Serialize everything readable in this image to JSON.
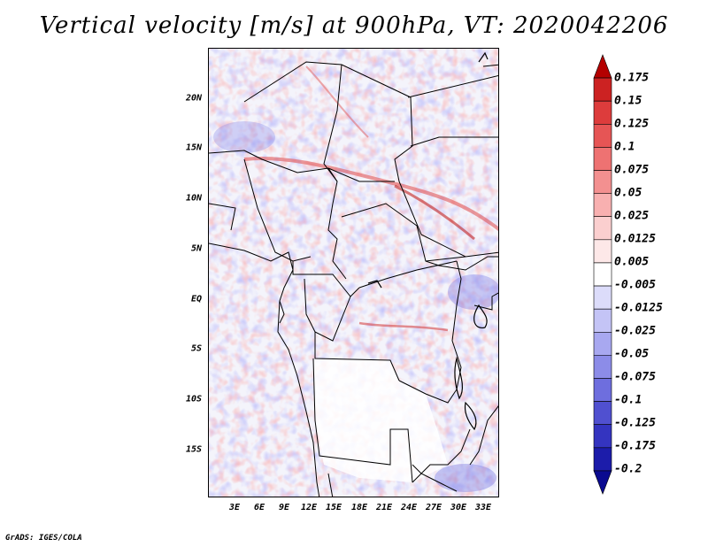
{
  "title": "Vertical velocity [m/s] at 900hPa, VT: 2020042206",
  "credit": "GrADS: IGES/COLA",
  "map": {
    "lat_labels": [
      "20N",
      "15N",
      "10N",
      "5N",
      "EQ",
      "5S",
      "10S",
      "15S"
    ],
    "lat_values": [
      20,
      15,
      10,
      5,
      0,
      -5,
      -10,
      -15
    ],
    "lon_labels": [
      "3E",
      "6E",
      "9E",
      "12E",
      "15E",
      "18E",
      "21E",
      "24E",
      "27E",
      "30E",
      "33E"
    ],
    "lon_values": [
      3,
      6,
      9,
      12,
      15,
      18,
      21,
      24,
      27,
      30,
      33
    ],
    "lat_range": [
      -20,
      24.5
    ],
    "lon_range": [
      0.5,
      35
    ]
  },
  "colorbar": {
    "levels": [
      "0.175",
      "0.15",
      "0.125",
      "0.1",
      "0.075",
      "0.05",
      "0.025",
      "0.0125",
      "0.005",
      "-0.005",
      "-0.0125",
      "-0.025",
      "-0.05",
      "-0.075",
      "-0.1",
      "-0.125",
      "-0.175",
      "-0.2"
    ],
    "colors": [
      "#b40000",
      "#cc2222",
      "#dd3c3c",
      "#e65555",
      "#ee7272",
      "#f39090",
      "#f8b0b0",
      "#fbcfcf",
      "#fde8e8",
      "#ffffff",
      "#dcdcfa",
      "#c4c4f6",
      "#a8a8f0",
      "#8c8ce8",
      "#6e6ede",
      "#5050d0",
      "#3434c0",
      "#1c1caa",
      "#0a0a90"
    ]
  }
}
